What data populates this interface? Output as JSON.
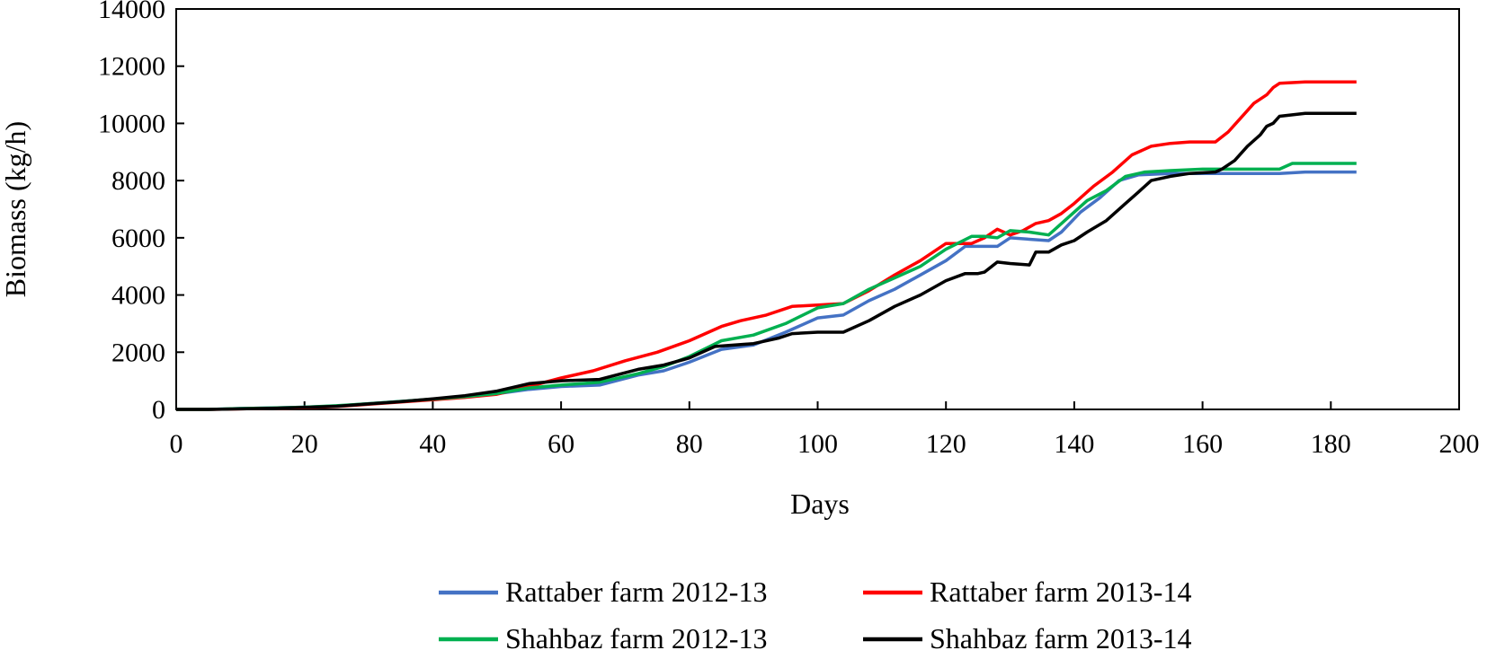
{
  "chart_data": {
    "type": "line",
    "title": "",
    "xlabel": "Days",
    "ylabel": "Biomass (kg/h)",
    "xlim": [
      0,
      200
    ],
    "ylim": [
      0,
      14000
    ],
    "x_ticks": [
      0,
      20,
      40,
      60,
      80,
      100,
      120,
      140,
      160,
      180,
      200
    ],
    "y_ticks": [
      0,
      2000,
      4000,
      6000,
      8000,
      10000,
      12000,
      14000
    ],
    "grid": false,
    "legend_position": "bottom",
    "series": [
      {
        "name": "Rattaber farm 2012-13",
        "color": "#4472C4",
        "x": [
          0,
          5,
          10,
          15,
          20,
          25,
          30,
          35,
          40,
          45,
          50,
          55,
          60,
          66,
          72,
          76,
          80,
          85,
          90,
          95,
          100,
          104,
          108,
          112,
          116,
          120,
          123,
          126,
          128,
          130,
          133,
          136,
          138,
          141,
          144,
          147,
          150,
          155,
          160,
          165,
          172,
          176,
          184
        ],
        "y": [
          0,
          0,
          30,
          50,
          80,
          120,
          200,
          280,
          350,
          440,
          550,
          700,
          800,
          850,
          1200,
          1350,
          1650,
          2100,
          2250,
          2700,
          3200,
          3300,
          3800,
          4200,
          4700,
          5200,
          5700,
          5700,
          5700,
          6000,
          5950,
          5900,
          6200,
          6900,
          7400,
          8000,
          8200,
          8250,
          8250,
          8250,
          8250,
          8300,
          8300
        ]
      },
      {
        "name": "Rattaber farm 2013-14",
        "color": "#FF0000",
        "x": [
          0,
          5,
          10,
          15,
          20,
          25,
          30,
          35,
          40,
          45,
          50,
          55,
          60,
          65,
          70,
          75,
          80,
          85,
          88,
          92,
          96,
          100,
          104,
          108,
          112,
          116,
          120,
          124,
          126,
          128,
          130,
          132,
          134,
          136,
          138,
          140,
          143,
          146,
          149,
          152,
          155,
          158,
          162,
          164,
          166,
          168,
          170,
          171,
          172,
          176,
          184
        ],
        "y": [
          0,
          0,
          20,
          40,
          60,
          100,
          180,
          260,
          340,
          420,
          530,
          800,
          1100,
          1350,
          1700,
          2000,
          2400,
          2900,
          3100,
          3300,
          3600,
          3650,
          3700,
          4150,
          4700,
          5200,
          5800,
          5800,
          6000,
          6300,
          6100,
          6250,
          6500,
          6600,
          6850,
          7200,
          7800,
          8300,
          8900,
          9200,
          9300,
          9350,
          9350,
          9700,
          10200,
          10700,
          11000,
          11250,
          11400,
          11450,
          11450
        ]
      },
      {
        "name": "Shahbaz farm 2012-13",
        "color": "#00B050",
        "x": [
          0,
          5,
          10,
          15,
          20,
          25,
          30,
          35,
          40,
          45,
          50,
          55,
          60,
          66,
          72,
          76,
          80,
          85,
          90,
          95,
          100,
          104,
          108,
          112,
          116,
          120,
          124,
          126,
          128,
          130,
          133,
          136,
          139,
          142,
          145,
          148,
          151,
          155,
          160,
          165,
          172,
          174,
          184
        ],
        "y": [
          0,
          0,
          30,
          50,
          80,
          130,
          200,
          280,
          360,
          450,
          560,
          750,
          850,
          950,
          1250,
          1500,
          1850,
          2400,
          2600,
          3000,
          3550,
          3700,
          4200,
          4600,
          5000,
          5600,
          6050,
          6050,
          6000,
          6250,
          6200,
          6100,
          6700,
          7300,
          7650,
          8150,
          8300,
          8350,
          8400,
          8400,
          8400,
          8600,
          8600
        ]
      },
      {
        "name": "Shahbaz farm 2013-14",
        "color": "#000000",
        "x": [
          0,
          5,
          10,
          15,
          20,
          25,
          30,
          35,
          40,
          45,
          50,
          55,
          60,
          66,
          72,
          76,
          80,
          84,
          90,
          94,
          96,
          100,
          104,
          108,
          112,
          116,
          120,
          123,
          125,
          126,
          128,
          130,
          133,
          134,
          136,
          138,
          140,
          142,
          145,
          148,
          150,
          152,
          155,
          158,
          162,
          163,
          165,
          167,
          169,
          170,
          171,
          172,
          176,
          184
        ],
        "y": [
          0,
          0,
          20,
          40,
          70,
          110,
          190,
          270,
          370,
          480,
          640,
          900,
          1000,
          1050,
          1400,
          1550,
          1800,
          2200,
          2300,
          2500,
          2650,
          2700,
          2700,
          3100,
          3600,
          4000,
          4500,
          4750,
          4750,
          4800,
          5150,
          5100,
          5050,
          5500,
          5500,
          5750,
          5900,
          6200,
          6600,
          7200,
          7600,
          8000,
          8150,
          8250,
          8300,
          8400,
          8700,
          9200,
          9600,
          9900,
          10000,
          10250,
          10350,
          10350
        ]
      }
    ]
  }
}
